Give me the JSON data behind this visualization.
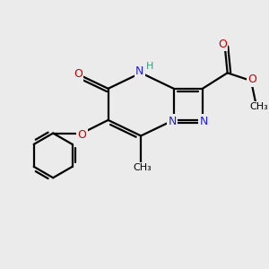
{
  "bg_color": "#ebebeb",
  "atom_colors": {
    "C": "#000000",
    "N": "#2222cc",
    "O": "#cc0000",
    "H": "#3a9a7a"
  },
  "bond_color": "#000000",
  "bond_width": 1.6,
  "figsize": [
    3.0,
    3.0
  ],
  "dpi": 100,
  "xlim": [
    0,
    10
  ],
  "ylim": [
    0,
    10
  ]
}
